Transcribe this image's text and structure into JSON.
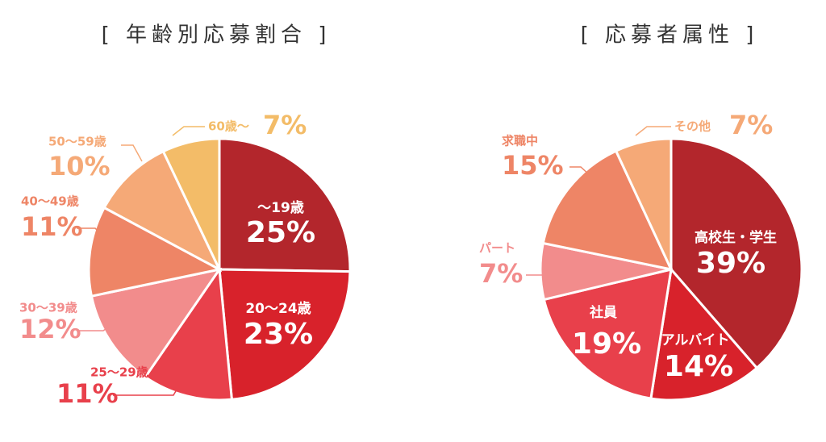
{
  "chart_data": [
    {
      "type": "pie",
      "title": "[ 年齢別応募割合 ]",
      "categories": [
        "〜19歳",
        "20〜24歳",
        "25〜29歳",
        "30〜39歳",
        "40〜49歳",
        "50〜59歳",
        "60歳〜"
      ],
      "values": [
        25,
        23,
        11,
        12,
        11,
        10,
        7
      ],
      "value_labels": [
        "25%",
        "23%",
        "11%",
        "12%",
        "11%",
        "10%",
        "7%"
      ],
      "colors": [
        "#b3262c",
        "#d8222b",
        "#e8404b",
        "#f28c8c",
        "#ee8566",
        "#f5a977",
        "#f3bc68"
      ]
    },
    {
      "type": "pie",
      "title": "[ 応募者属性 ]",
      "categories": [
        "高校生・学生",
        "アルバイト",
        "社員",
        "パート",
        "求職中",
        "その他"
      ],
      "values": [
        39,
        14,
        19,
        7,
        15,
        7
      ],
      "value_labels": [
        "39%",
        "14%",
        "19%",
        "7%",
        "15%",
        "7%"
      ],
      "colors": [
        "#b3262c",
        "#d8222b",
        "#e8404b",
        "#f28c8c",
        "#ee8566",
        "#f5a977"
      ]
    }
  ]
}
